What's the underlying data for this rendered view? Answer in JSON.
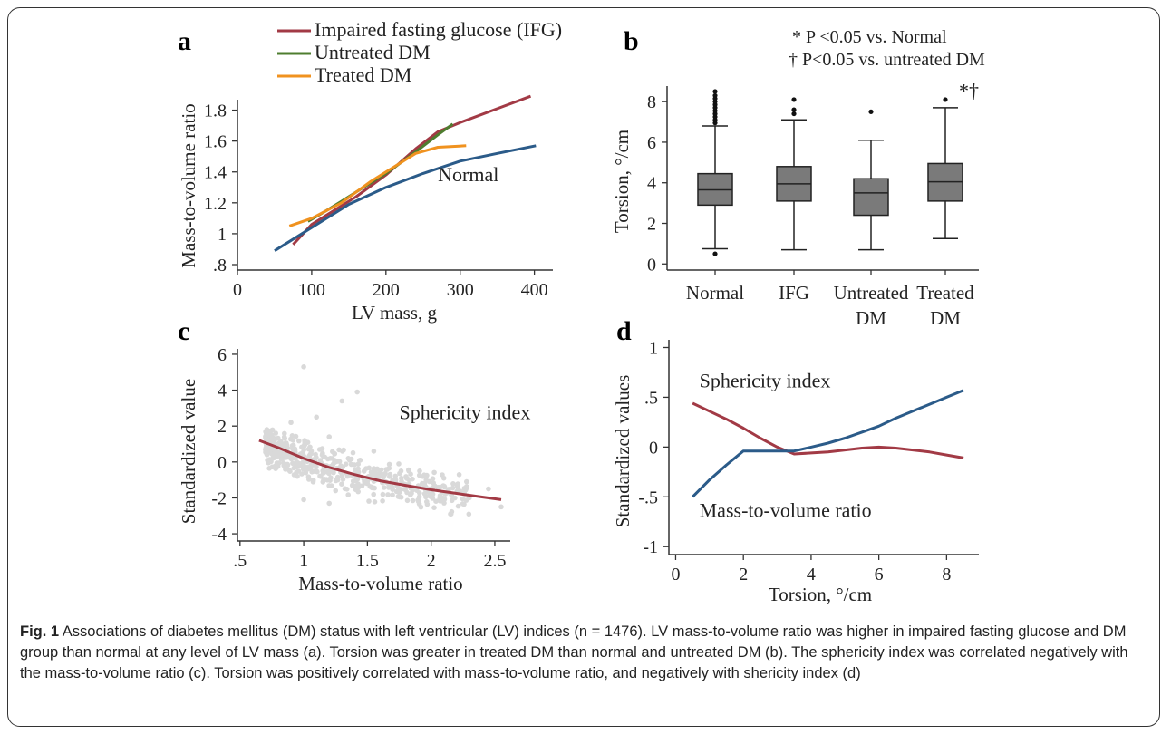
{
  "caption": {
    "label": "Fig. 1",
    "text": "Associations of diabetes mellitus (DM) status with left ventricular (LV) indices (n = 1476). LV mass-to-volume ratio was higher in impaired fasting glucose and DM group than normal at any level of LV mass (a). Torsion was greater in treated DM than normal and untreated DM (b). The sphericity index was correlated negatively with the mass-to-volume ratio (c). Torsion was positively correlated with mass-to-volume ratio, and negatively with shericity index (d)"
  },
  "chart_data": [
    {
      "panel": "a",
      "type": "line",
      "xlabel": "LV mass, g",
      "ylabel": "Mass-to-volume ratio",
      "xlim": [
        0,
        420
      ],
      "ylim": [
        0.8,
        1.95
      ],
      "xticks": [
        {
          "v": 0,
          "label": "0"
        },
        {
          "v": 100,
          "label": "100"
        },
        {
          "v": 200,
          "label": "200"
        },
        {
          "v": 300,
          "label": "300"
        },
        {
          "v": 400,
          "label": "400"
        }
      ],
      "yticks": [
        {
          "v": 0.8,
          "label": ".8"
        },
        {
          "v": 1.0,
          "label": "1"
        },
        {
          "v": 1.2,
          "label": "1.2"
        },
        {
          "v": 1.4,
          "label": "1.4"
        },
        {
          "v": 1.6,
          "label": "1.6"
        },
        {
          "v": 1.8,
          "label": "1.8"
        }
      ],
      "legend_position": "top",
      "series": [
        {
          "name": "Impaired fasting glucose (IFG)",
          "color": "#a23a45",
          "x": [
            75,
            100,
            130,
            160,
            200,
            240,
            270,
            300,
            350,
            395
          ],
          "y": [
            0.93,
            1.06,
            1.15,
            1.24,
            1.38,
            1.55,
            1.66,
            1.72,
            1.81,
            1.89
          ]
        },
        {
          "name": "Untreated DM",
          "color": "#4e7d2f",
          "x": [
            95,
            120,
            140,
            160,
            200,
            240,
            270,
            290
          ],
          "y": [
            1.08,
            1.15,
            1.21,
            1.27,
            1.39,
            1.53,
            1.64,
            1.71
          ]
        },
        {
          "name": "Treated DM",
          "color": "#f0921f",
          "x": [
            70,
            100,
            140,
            180,
            210,
            240,
            270,
            308
          ],
          "y": [
            1.05,
            1.1,
            1.2,
            1.34,
            1.43,
            1.52,
            1.56,
            1.57
          ]
        },
        {
          "name": "Normal",
          "color": "#2b5b89",
          "x": [
            50,
            100,
            150,
            200,
            250,
            300,
            350,
            402
          ],
          "y": [
            0.89,
            1.04,
            1.19,
            1.3,
            1.39,
            1.47,
            1.52,
            1.57
          ]
        }
      ],
      "annotations": [
        {
          "text": "Normal",
          "x": 270,
          "y": 1.34
        }
      ]
    },
    {
      "panel": "b",
      "type": "box",
      "xlabel": "",
      "ylabel": "Torsion, °/cm",
      "ylim": [
        -0.3,
        8.9
      ],
      "yticks": [
        {
          "v": 0,
          "label": "0"
        },
        {
          "v": 2,
          "label": "2"
        },
        {
          "v": 4,
          "label": "4"
        },
        {
          "v": 6,
          "label": "6"
        },
        {
          "v": 8,
          "label": "8"
        }
      ],
      "categories": [
        [
          "Normal"
        ],
        [
          "IFG"
        ],
        [
          "Untreated",
          "DM"
        ],
        [
          "Treated",
          "DM"
        ]
      ],
      "box_color": "#7a7a7a",
      "boxes": [
        {
          "min": 0.75,
          "q1": 2.9,
          "median": 3.65,
          "q3": 4.45,
          "max": 6.8,
          "outliers": [
            0.5,
            6.95,
            7.1,
            7.25,
            7.4,
            7.55,
            7.7,
            7.85,
            8.0,
            8.15,
            8.3,
            8.5
          ]
        },
        {
          "min": 0.7,
          "q1": 3.1,
          "median": 3.95,
          "q3": 4.8,
          "max": 7.1,
          "outliers": [
            7.4,
            7.6,
            8.1
          ]
        },
        {
          "min": 0.7,
          "q1": 2.4,
          "median": 3.5,
          "q3": 4.2,
          "max": 6.1,
          "outliers": [
            7.5
          ]
        },
        {
          "min": 1.25,
          "q1": 3.1,
          "median": 4.05,
          "q3": 4.95,
          "max": 7.7,
          "outliers": [
            8.1
          ]
        }
      ],
      "significance_mark": "*†",
      "notes": [
        "* P <0.05 vs. Normal",
        "† P<0.05 vs. untreated DM"
      ]
    },
    {
      "panel": "c",
      "type": "scatter",
      "xlabel": "Mass-to-volume ratio",
      "ylabel": "Standardized value",
      "xlim": [
        0.48,
        2.6
      ],
      "ylim": [
        -4.4,
        6.3
      ],
      "xticks": [
        {
          "v": 0.5,
          "label": ".5"
        },
        {
          "v": 1.0,
          "label": "1"
        },
        {
          "v": 1.5,
          "label": "1.5"
        },
        {
          "v": 2.0,
          "label": "2"
        },
        {
          "v": 2.5,
          "label": "2.5"
        }
      ],
      "yticks": [
        {
          "v": -4,
          "label": "-4"
        },
        {
          "v": -2,
          "label": "-2"
        },
        {
          "v": 0,
          "label": "0"
        },
        {
          "v": 2,
          "label": "2"
        },
        {
          "v": 4,
          "label": "4"
        },
        {
          "v": 6,
          "label": "6"
        }
      ],
      "scatter_color": "#d9d9d9",
      "fit_line": {
        "name": "Sphericity index",
        "color": "#a23a45",
        "x": [
          0.65,
          0.8,
          1.0,
          1.2,
          1.4,
          1.6,
          1.8,
          2.0,
          2.2,
          2.4,
          2.55
        ],
        "y": [
          1.2,
          0.8,
          0.2,
          -0.3,
          -0.7,
          -1.05,
          -1.3,
          -1.55,
          -1.75,
          -1.95,
          -2.1
        ]
      },
      "scatter_points_approx": [
        [
          1.0,
          5.3
        ],
        [
          1.42,
          3.9
        ],
        [
          1.3,
          3.4
        ],
        [
          0.9,
          2.2
        ],
        [
          1.1,
          2.5
        ],
        [
          1.2,
          1.4
        ],
        [
          0.85,
          0.6
        ],
        [
          1.05,
          0.1
        ],
        [
          1.15,
          -0.5
        ],
        [
          1.3,
          -0.8
        ],
        [
          1.5,
          -1.2
        ],
        [
          1.7,
          -1.0
        ],
        [
          2.0,
          -1.6
        ],
        [
          2.3,
          -2.0
        ],
        [
          2.45,
          -1.5
        ],
        [
          2.55,
          -2.5
        ],
        [
          2.1,
          -0.9
        ],
        [
          1.9,
          -2.2
        ],
        [
          1.0,
          -2.1
        ],
        [
          1.2,
          -2.3
        ],
        [
          0.75,
          1.5
        ],
        [
          1.55,
          0.6
        ],
        [
          1.35,
          0.2
        ],
        [
          1.25,
          -1.6
        ],
        [
          0.95,
          -0.8
        ],
        [
          1.75,
          -1.7
        ]
      ],
      "annotations": [
        {
          "text": "Sphericity index",
          "x": 1.75,
          "y": 2.4
        }
      ]
    },
    {
      "panel": "d",
      "type": "line",
      "xlabel": "Torsion, °/cm",
      "ylabel": "Standardized values",
      "xlim": [
        -0.2,
        8.9
      ],
      "ylim": [
        -1.08,
        1.05
      ],
      "xticks": [
        {
          "v": 0,
          "label": "0"
        },
        {
          "v": 2,
          "label": "2"
        },
        {
          "v": 4,
          "label": "4"
        },
        {
          "v": 6,
          "label": "6"
        },
        {
          "v": 8,
          "label": "8"
        }
      ],
      "yticks": [
        {
          "v": -1,
          "label": "-1"
        },
        {
          "v": -0.5,
          "label": "-.5"
        },
        {
          "v": 0,
          "label": "0"
        },
        {
          "v": 0.5,
          "label": ".5"
        },
        {
          "v": 1,
          "label": "1"
        }
      ],
      "series": [
        {
          "name": "Sphericity index",
          "color": "#a23a45",
          "x": [
            0.5,
            1.0,
            1.5,
            2.0,
            2.5,
            3.0,
            3.5,
            4.0,
            4.5,
            5.0,
            5.5,
            6.0,
            6.5,
            7.0,
            7.5,
            8.0,
            8.5
          ],
          "y": [
            0.44,
            0.36,
            0.28,
            0.19,
            0.09,
            0.0,
            -0.07,
            -0.06,
            -0.05,
            -0.03,
            -0.01,
            0.0,
            -0.01,
            -0.03,
            -0.05,
            -0.08,
            -0.11
          ]
        },
        {
          "name": "Mass-to-volume ratio",
          "color": "#2b5b89",
          "x": [
            0.5,
            1.0,
            1.5,
            2.0,
            2.5,
            3.0,
            3.5,
            4.0,
            4.5,
            5.0,
            5.5,
            6.0,
            6.5,
            7.0,
            7.5,
            8.0,
            8.5
          ],
          "y": [
            -0.5,
            -0.33,
            -0.18,
            -0.04,
            -0.04,
            -0.04,
            -0.04,
            0.0,
            0.04,
            0.09,
            0.15,
            0.21,
            0.29,
            0.36,
            0.43,
            0.5,
            0.57
          ]
        }
      ],
      "annotations": [
        {
          "text": "Sphericity index",
          "x": 0.7,
          "y": 0.6
        },
        {
          "text": "Mass-to-volume ratio",
          "x": 0.7,
          "y": -0.7
        }
      ]
    }
  ]
}
